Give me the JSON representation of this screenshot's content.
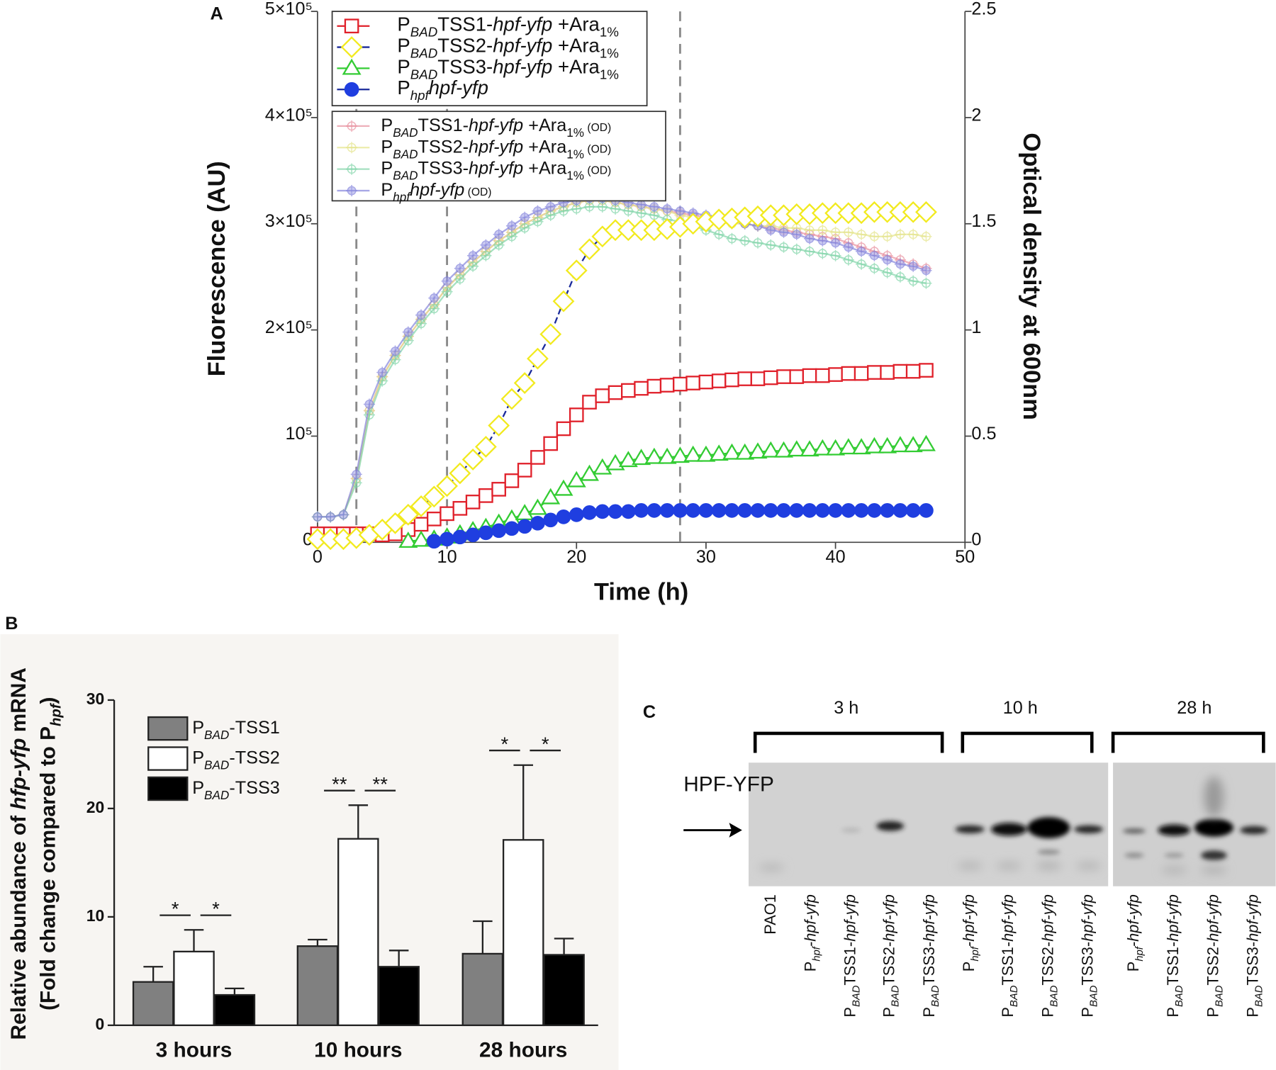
{
  "panel_labels": {
    "a": "A",
    "b": "B",
    "c": "C"
  },
  "chart_data": [
    {
      "type": "line",
      "xlabel": "Time (h)",
      "ylabel": "Fluorescence (AU)",
      "y2label": "Optical density at 600nm",
      "x": [
        0,
        1,
        2,
        3,
        4,
        5,
        6,
        7,
        8,
        9,
        10,
        11,
        12,
        13,
        14,
        15,
        16,
        17,
        18,
        19,
        20,
        21,
        22,
        23,
        24,
        25,
        26,
        27,
        28,
        29,
        30,
        31,
        32,
        33,
        34,
        35,
        36,
        37,
        38,
        39,
        40,
        41,
        42,
        43,
        44,
        45,
        46,
        47
      ],
      "xlim": [
        0,
        50
      ],
      "xticks": [
        0,
        10,
        20,
        30,
        40,
        50
      ],
      "ylim": [
        0,
        500000
      ],
      "yticks": [
        0,
        {
          "value": 100000,
          "label": "10⁵"
        },
        {
          "value": 200000,
          "label": "2×10⁵"
        },
        {
          "value": 300000,
          "label": "3×10⁵"
        },
        {
          "value": 400000,
          "label": "4×10⁵"
        },
        {
          "value": 500000,
          "label": "5×10⁵"
        }
      ],
      "y2lim": [
        0,
        2.5
      ],
      "y2ticks": [
        0,
        0.5,
        1,
        1.5,
        2,
        2.5
      ],
      "reference_lines": [
        3,
        10,
        28
      ],
      "legend": "top-left",
      "series": [
        {
          "name": [
            {
              "t": "P"
            },
            {
              "t": "BAD",
              "sub": true,
              "i": true
            },
            {
              "t": "TSS1-"
            },
            {
              "t": "hpf-yfp",
              "i": true
            },
            {
              "t": " +Ara"
            },
            {
              "t": "1%",
              "sub": true
            }
          ],
          "color": "#e0202a",
          "line_color": "#e0202a",
          "line_style": "solid",
          "marker": "square",
          "marker_fill": "#ffffff",
          "values": [
            8000,
            8000,
            8000,
            8000,
            8000,
            7000,
            8000,
            12000,
            17000,
            22000,
            27000,
            32000,
            38000,
            44000,
            50000,
            58000,
            68000,
            80000,
            93000,
            107000,
            120000,
            132000,
            138000,
            141000,
            143000,
            145000,
            147000,
            148000,
            149000,
            150000,
            151000,
            152000,
            153000,
            154000,
            154000,
            155000,
            156000,
            156000,
            157000,
            157000,
            158000,
            159000,
            159000,
            160000,
            160000,
            161000,
            161000,
            162000
          ]
        },
        {
          "name": [
            {
              "t": "P"
            },
            {
              "t": "BAD",
              "sub": true,
              "i": true
            },
            {
              "t": "TSS2-"
            },
            {
              "t": "hpf-yfp",
              "i": true
            },
            {
              "t": " +Ara"
            },
            {
              "t": "1%",
              "sub": true
            }
          ],
          "color": "#f2ea1e",
          "line_color": "#1a2a9a",
          "line_style": "dashed",
          "marker": "diamond",
          "marker_fill": "#ffffff",
          "values": [
            3000,
            3000,
            3000,
            4000,
            7000,
            12000,
            18000,
            26000,
            34000,
            43000,
            53000,
            65000,
            78000,
            90000,
            110000,
            135000,
            150000,
            173000,
            196000,
            227000,
            256000,
            276000,
            288000,
            294000,
            294000,
            294000,
            294000,
            295000,
            297000,
            300000,
            302000,
            304000,
            305000,
            306000,
            307000,
            308000,
            308000,
            309000,
            309000,
            310000,
            310000,
            310000,
            310000,
            311000,
            311000,
            311000,
            311000,
            311000
          ]
        },
        {
          "name": [
            {
              "t": "P"
            },
            {
              "t": "BAD",
              "sub": true,
              "i": true
            },
            {
              "t": "TSS3-"
            },
            {
              "t": "hpf-yfp",
              "i": true
            },
            {
              "t": " +Ara"
            },
            {
              "t": "1%",
              "sub": true
            }
          ],
          "color": "#33cc33",
          "line_color": "#33cc33",
          "line_style": "solid",
          "marker": "triangle",
          "marker_fill": "#ffffff",
          "values": [
            null,
            null,
            null,
            null,
            null,
            null,
            null,
            1000,
            2000,
            3000,
            5000,
            8000,
            11000,
            14000,
            18000,
            22000,
            27000,
            32000,
            42000,
            50000,
            58000,
            64000,
            70000,
            74000,
            77000,
            79000,
            80000,
            80000,
            81000,
            82000,
            82000,
            83000,
            84000,
            84000,
            85000,
            86000,
            86000,
            87000,
            87000,
            88000,
            88000,
            89000,
            89000,
            90000,
            90000,
            91000,
            91000,
            92000
          ]
        },
        {
          "name": [
            {
              "t": "P"
            },
            {
              "t": "hpf",
              "sub": true,
              "i": true
            },
            {
              "t": "hpf-yfp",
              "i": true
            }
          ],
          "color": "#1f3ee0",
          "line_color": "#1a2a9a",
          "line_style": "solid",
          "marker": "circle",
          "marker_fill": "#1f3ee0",
          "values": [
            null,
            null,
            null,
            null,
            null,
            null,
            null,
            null,
            null,
            1000,
            3000,
            5000,
            7000,
            9000,
            11000,
            13000,
            15000,
            18000,
            21000,
            24000,
            26000,
            28000,
            29000,
            29000,
            29000,
            30000,
            30000,
            30000,
            30000,
            30000,
            30000,
            30000,
            30000,
            30000,
            30000,
            30000,
            30000,
            30000,
            30000,
            30000,
            30000,
            30000,
            30000,
            30000,
            30000,
            30000,
            30000,
            30000
          ]
        },
        {
          "name": [
            {
              "t": "P"
            },
            {
              "t": "BAD",
              "sub": true,
              "i": true
            },
            {
              "t": "TSS1-"
            },
            {
              "t": "hpf-yfp",
              "i": true
            },
            {
              "t": " +Ara"
            },
            {
              "t": "1%",
              "sub": true
            },
            {
              "t": " (OD)",
              "sm": true
            }
          ],
          "axis": "y2",
          "color": "#e8909e",
          "line_color": "#e8909e",
          "line_style": "solid",
          "marker": "plus-circle",
          "marker_fill": "none",
          "opacity": 0.7,
          "values": [
            0.12,
            0.12,
            0.13,
            0.3,
            0.62,
            0.78,
            0.88,
            0.97,
            1.05,
            1.12,
            1.2,
            1.26,
            1.32,
            1.37,
            1.42,
            1.46,
            1.5,
            1.53,
            1.56,
            1.58,
            1.6,
            1.61,
            1.61,
            1.6,
            1.59,
            1.58,
            1.57,
            1.56,
            1.55,
            1.54,
            1.53,
            1.52,
            1.51,
            1.5,
            1.49,
            1.48,
            1.47,
            1.46,
            1.45,
            1.44,
            1.43,
            1.41,
            1.39,
            1.37,
            1.35,
            1.33,
            1.31,
            1.29
          ]
        },
        {
          "name": [
            {
              "t": "P"
            },
            {
              "t": "BAD",
              "sub": true,
              "i": true
            },
            {
              "t": "TSS2-"
            },
            {
              "t": "hpf-yfp",
              "i": true
            },
            {
              "t": " +Ara"
            },
            {
              "t": "1%",
              "sub": true
            },
            {
              "t": " (OD)",
              "sm": true
            }
          ],
          "axis": "y2",
          "color": "#e4e48a",
          "line_color": "#e4e48a",
          "line_style": "solid",
          "marker": "plus-circle",
          "marker_fill": "none",
          "opacity": 0.7,
          "values": [
            0.12,
            0.12,
            0.13,
            0.3,
            0.62,
            0.78,
            0.88,
            0.97,
            1.05,
            1.12,
            1.2,
            1.26,
            1.32,
            1.37,
            1.42,
            1.46,
            1.5,
            1.53,
            1.56,
            1.58,
            1.6,
            1.61,
            1.61,
            1.6,
            1.59,
            1.58,
            1.57,
            1.56,
            1.54,
            1.53,
            1.52,
            1.51,
            1.5,
            1.5,
            1.49,
            1.49,
            1.48,
            1.48,
            1.47,
            1.47,
            1.46,
            1.46,
            1.45,
            1.44,
            1.44,
            1.45,
            1.45,
            1.44
          ]
        },
        {
          "name": [
            {
              "t": "P"
            },
            {
              "t": "BAD",
              "sub": true,
              "i": true
            },
            {
              "t": "TSS3-"
            },
            {
              "t": "hpf-yfp",
              "i": true
            },
            {
              "t": " +Ara"
            },
            {
              "t": "1%",
              "sub": true
            },
            {
              "t": " (OD)",
              "sm": true
            }
          ],
          "axis": "y2",
          "color": "#80d4a8",
          "line_color": "#80d4a8",
          "line_style": "solid",
          "marker": "plus-circle",
          "marker_fill": "none",
          "opacity": 0.7,
          "values": [
            0.12,
            0.12,
            0.13,
            0.28,
            0.6,
            0.76,
            0.86,
            0.95,
            1.03,
            1.1,
            1.18,
            1.24,
            1.3,
            1.35,
            1.4,
            1.44,
            1.48,
            1.51,
            1.54,
            1.56,
            1.57,
            1.58,
            1.58,
            1.57,
            1.56,
            1.55,
            1.54,
            1.52,
            1.51,
            1.49,
            1.47,
            1.45,
            1.43,
            1.42,
            1.41,
            1.4,
            1.39,
            1.38,
            1.37,
            1.36,
            1.35,
            1.33,
            1.31,
            1.29,
            1.27,
            1.25,
            1.23,
            1.22
          ]
        },
        {
          "name": [
            {
              "t": "P"
            },
            {
              "t": "hpf",
              "sub": true,
              "i": true
            },
            {
              "t": "hpf-yfp",
              "i": true
            },
            {
              "t": " (OD)",
              "sm": true
            }
          ],
          "axis": "y2",
          "color": "#8484dc",
          "line_color": "#8484dc",
          "line_style": "solid",
          "marker": "plus-circle",
          "marker_fill": "#b4b4ec",
          "opacity": 0.7,
          "values": [
            0.12,
            0.12,
            0.13,
            0.32,
            0.65,
            0.8,
            0.9,
            0.99,
            1.07,
            1.15,
            1.23,
            1.29,
            1.35,
            1.4,
            1.45,
            1.49,
            1.53,
            1.56,
            1.58,
            1.6,
            1.61,
            1.62,
            1.62,
            1.61,
            1.6,
            1.59,
            1.58,
            1.57,
            1.56,
            1.55,
            1.54,
            1.53,
            1.52,
            1.5,
            1.49,
            1.47,
            1.46,
            1.45,
            1.43,
            1.42,
            1.41,
            1.39,
            1.37,
            1.35,
            1.33,
            1.31,
            1.3,
            1.28
          ]
        }
      ]
    },
    {
      "type": "bar",
      "ylabel": [
        [
          {
            "t": "Relative abundance of "
          },
          {
            "t": "hfp-yfp",
            "i": true
          },
          {
            "t": " mRNA"
          }
        ],
        [
          {
            "t": "(Fold change compared to P"
          },
          {
            "t": "hpf",
            "sub": true,
            "i": true
          },
          {
            "t": ")"
          }
        ]
      ],
      "categories": [
        "3 hours",
        "10 hours",
        "28 hours"
      ],
      "ylim": [
        0,
        30
      ],
      "yticks": [
        0,
        10,
        20,
        30
      ],
      "legend": "top-left",
      "series": [
        {
          "name": [
            {
              "t": "P"
            },
            {
              "t": "BAD",
              "sub": true,
              "i": true
            },
            {
              "t": "-TSS1"
            }
          ],
          "color": "#808080",
          "values": [
            4.0,
            7.3,
            6.6
          ],
          "errors": [
            1.4,
            0.6,
            3.0
          ]
        },
        {
          "name": [
            {
              "t": "P"
            },
            {
              "t": "BAD",
              "sub": true,
              "i": true
            },
            {
              "t": "-TSS2"
            }
          ],
          "color": "#ffffff",
          "values": [
            6.8,
            17.2,
            17.1
          ],
          "errors": [
            2.0,
            3.1,
            6.9
          ]
        },
        {
          "name": [
            {
              "t": "P"
            },
            {
              "t": "BAD",
              "sub": true,
              "i": true
            },
            {
              "t": "-TSS3"
            }
          ],
          "color": "#000000",
          "values": [
            2.8,
            5.4,
            6.5
          ],
          "errors": [
            0.6,
            1.5,
            1.5
          ]
        }
      ],
      "significance": [
        [
          "*",
          "*"
        ],
        [
          "**",
          "**"
        ],
        [
          "*",
          "*"
        ]
      ]
    }
  ],
  "blot": {
    "timepoints": [
      "3 h",
      "10 h",
      "28 h"
    ],
    "band_label": "HPF-YFP",
    "lanes": [
      [
        {
          "t": "PAO1"
        }
      ],
      [
        {
          "t": "P"
        },
        {
          "t": "hpf",
          "sub": true,
          "i": true
        },
        {
          "t": "-hpf-yfp",
          "i": true
        }
      ],
      [
        {
          "t": "P"
        },
        {
          "t": "BAD",
          "sub": true,
          "i": true
        },
        {
          "t": "TSS1-"
        },
        {
          "t": "hpf-yfp",
          "i": true
        }
      ],
      [
        {
          "t": "P"
        },
        {
          "t": "BAD",
          "sub": true,
          "i": true
        },
        {
          "t": "TSS2-"
        },
        {
          "t": "hpf-yfp",
          "i": true
        }
      ],
      [
        {
          "t": "P"
        },
        {
          "t": "BAD",
          "sub": true,
          "i": true
        },
        {
          "t": "TSS3-"
        },
        {
          "t": "hpf-yfp",
          "i": true
        }
      ],
      [
        {
          "t": "P"
        },
        {
          "t": "hpf",
          "sub": true,
          "i": true
        },
        {
          "t": "-hpf-yfp",
          "i": true
        }
      ],
      [
        {
          "t": "P"
        },
        {
          "t": "BAD",
          "sub": true,
          "i": true
        },
        {
          "t": "TSS1-"
        },
        {
          "t": "hpf-yfp",
          "i": true
        }
      ],
      [
        {
          "t": "P"
        },
        {
          "t": "BAD",
          "sub": true,
          "i": true
        },
        {
          "t": "TSS2-"
        },
        {
          "t": "hpf-yfp",
          "i": true
        }
      ],
      [
        {
          "t": "P"
        },
        {
          "t": "BAD",
          "sub": true,
          "i": true
        },
        {
          "t": "TSS3-"
        },
        {
          "t": "hpf-yfp",
          "i": true
        }
      ],
      [
        {
          "t": "P"
        },
        {
          "t": "hpf",
          "sub": true,
          "i": true
        },
        {
          "t": "-hpf-yfp",
          "i": true
        }
      ],
      [
        {
          "t": "P"
        },
        {
          "t": "BAD",
          "sub": true,
          "i": true
        },
        {
          "t": "TSS1-"
        },
        {
          "t": "hpf-yfp",
          "i": true
        }
      ],
      [
        {
          "t": "P"
        },
        {
          "t": "BAD",
          "sub": true,
          "i": true
        },
        {
          "t": "TSS2-"
        },
        {
          "t": "hpf-yfp",
          "i": true
        }
      ],
      [
        {
          "t": "P"
        },
        {
          "t": "BAD",
          "sub": true,
          "i": true
        },
        {
          "t": "TSS3-"
        },
        {
          "t": "hpf-yfp",
          "i": true
        }
      ]
    ]
  }
}
